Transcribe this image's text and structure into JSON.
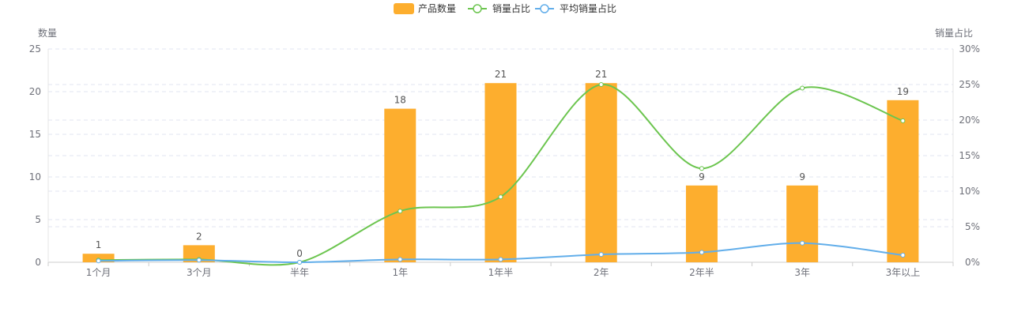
{
  "chart_data": {
    "type": "bar",
    "categories": [
      "1个月",
      "3个月",
      "半年",
      "1年",
      "1年半",
      "2年",
      "2年半",
      "3年",
      "3年以上"
    ],
    "y_left": {
      "label": "数量",
      "ylim": [
        0,
        25
      ],
      "ticks": [
        "0",
        "5",
        "10",
        "15",
        "20",
        "25"
      ]
    },
    "y_right": {
      "label": "销量占比",
      "ylim": [
        0,
        30
      ],
      "ticks": [
        "0%",
        "5%",
        "10%",
        "15%",
        "20%",
        "25%",
        "30%"
      ]
    },
    "series": [
      {
        "name": "产品数量",
        "kind": "bar",
        "axis": "left",
        "color": "#fdae2e",
        "values": [
          1,
          2,
          0,
          18,
          21,
          21,
          9,
          9,
          19
        ]
      },
      {
        "name": "销量占比",
        "kind": "line",
        "axis": "right",
        "color": "#6cc54f",
        "values": [
          0.3,
          0.4,
          0,
          7.2,
          9.2,
          25,
          13.2,
          24.5,
          19.9
        ]
      },
      {
        "name": "平均销量占比",
        "kind": "line",
        "axis": "right",
        "color": "#62aeea",
        "values": [
          0.2,
          0.3,
          0,
          0.4,
          0.4,
          1.1,
          1.4,
          2.7,
          1.0
        ]
      }
    ],
    "legend_position": "top-center",
    "grid": "dashed horizontal"
  }
}
